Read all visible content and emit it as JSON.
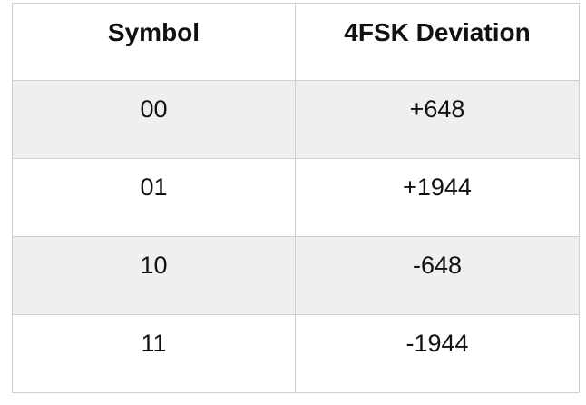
{
  "table": {
    "headers": [
      "Symbol",
      "4FSK Deviation"
    ],
    "rows": [
      [
        "00",
        "+648"
      ],
      [
        "01",
        "+1944"
      ],
      [
        "10",
        "-648"
      ],
      [
        "11",
        "-1944"
      ]
    ]
  },
  "colors": {
    "border": "#cfcfcf",
    "shaded_row": "#efefef",
    "text": "#111111"
  }
}
